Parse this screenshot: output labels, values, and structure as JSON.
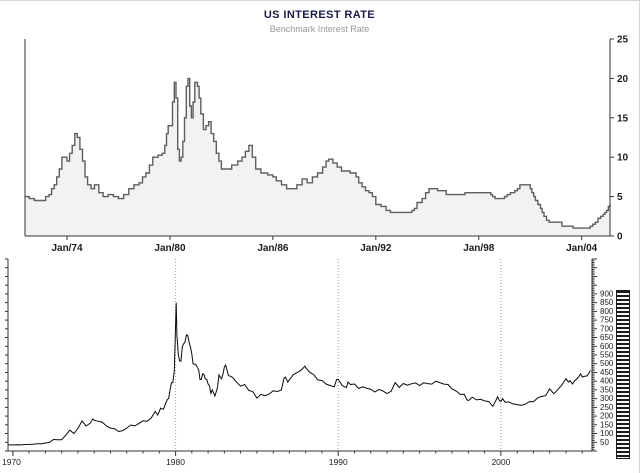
{
  "chart_data": [
    {
      "type": "area",
      "title": "US INTEREST RATE",
      "subtitle": "Benchmark Interest Rate",
      "step": true,
      "xlim": [
        1971.55,
        2005.65
      ],
      "ylim": [
        0,
        25
      ],
      "y_ticks": [
        0,
        5,
        10,
        15,
        20,
        25
      ],
      "x_tick_years": [
        1974,
        1980,
        1986,
        1992,
        1998,
        2004
      ],
      "x_tick_labels": [
        "Jan/74",
        "Jan/80",
        "Jan/86",
        "Jan/92",
        "Jan/98",
        "Jan/04"
      ],
      "legend_position": "none",
      "grid": false,
      "colors": {
        "title": "#1a1a4e",
        "subtitle": "#979797",
        "axis": "#333333",
        "label": "#1c1c1c",
        "line": "#5e5e5e",
        "fill": "#f2f2f2"
      },
      "points": [
        [
          1971.55,
          5.0
        ],
        [
          1971.8,
          4.75
        ],
        [
          1972.1,
          4.5
        ],
        [
          1972.5,
          4.5
        ],
        [
          1972.75,
          5.0
        ],
        [
          1972.95,
          5.25
        ],
        [
          1973.1,
          6.0
        ],
        [
          1973.25,
          6.5
        ],
        [
          1973.4,
          7.5
        ],
        [
          1973.55,
          8.5
        ],
        [
          1973.7,
          10.0
        ],
        [
          1974.0,
          9.5
        ],
        [
          1974.15,
          10.5
        ],
        [
          1974.3,
          11.5
        ],
        [
          1974.45,
          13.0
        ],
        [
          1974.6,
          12.5
        ],
        [
          1974.75,
          11.0
        ],
        [
          1974.9,
          9.5
        ],
        [
          1975.05,
          7.5
        ],
        [
          1975.2,
          6.5
        ],
        [
          1975.4,
          6.0
        ],
        [
          1975.6,
          6.5
        ],
        [
          1975.85,
          5.5
        ],
        [
          1976.1,
          5.0
        ],
        [
          1976.4,
          5.25
        ],
        [
          1976.7,
          5.0
        ],
        [
          1977.0,
          4.75
        ],
        [
          1977.3,
          5.25
        ],
        [
          1977.6,
          6.0
        ],
        [
          1977.9,
          6.5
        ],
        [
          1978.2,
          6.75
        ],
        [
          1978.4,
          7.5
        ],
        [
          1978.6,
          8.0
        ],
        [
          1978.8,
          9.0
        ],
        [
          1979.0,
          10.0
        ],
        [
          1979.3,
          10.25
        ],
        [
          1979.55,
          10.5
        ],
        [
          1979.7,
          11.5
        ],
        [
          1979.8,
          13.0
        ],
        [
          1979.9,
          14.0
        ],
        [
          1980.15,
          17.0
        ],
        [
          1980.25,
          19.5
        ],
        [
          1980.35,
          17.5
        ],
        [
          1980.45,
          11.0
        ],
        [
          1980.55,
          9.5
        ],
        [
          1980.65,
          10.0
        ],
        [
          1980.75,
          12.0
        ],
        [
          1980.85,
          15.0
        ],
        [
          1980.95,
          19.0
        ],
        [
          1981.05,
          20.0
        ],
        [
          1981.15,
          16.5
        ],
        [
          1981.25,
          15.0
        ],
        [
          1981.35,
          17.0
        ],
        [
          1981.45,
          19.5
        ],
        [
          1981.6,
          19.0
        ],
        [
          1981.7,
          17.5
        ],
        [
          1981.8,
          15.5
        ],
        [
          1981.95,
          13.5
        ],
        [
          1982.1,
          14.0
        ],
        [
          1982.25,
          14.5
        ],
        [
          1982.4,
          13.0
        ],
        [
          1982.55,
          12.0
        ],
        [
          1982.7,
          10.5
        ],
        [
          1982.85,
          9.5
        ],
        [
          1983.0,
          8.5
        ],
        [
          1983.6,
          9.0
        ],
        [
          1983.95,
          9.5
        ],
        [
          1984.2,
          10.0
        ],
        [
          1984.4,
          10.75
        ],
        [
          1984.6,
          11.5
        ],
        [
          1984.8,
          10.0
        ],
        [
          1985.0,
          8.5
        ],
        [
          1985.3,
          8.0
        ],
        [
          1985.7,
          7.75
        ],
        [
          1986.0,
          7.5
        ],
        [
          1986.2,
          7.0
        ],
        [
          1986.5,
          6.5
        ],
        [
          1986.8,
          6.0
        ],
        [
          1987.4,
          6.5
        ],
        [
          1987.7,
          7.25
        ],
        [
          1988.0,
          6.75
        ],
        [
          1988.3,
          7.5
        ],
        [
          1988.6,
          8.0
        ],
        [
          1988.9,
          8.75
        ],
        [
          1989.1,
          9.5
        ],
        [
          1989.25,
          9.75
        ],
        [
          1989.5,
          9.25
        ],
        [
          1989.75,
          8.75
        ],
        [
          1990.0,
          8.25
        ],
        [
          1990.5,
          8.0
        ],
        [
          1990.85,
          7.5
        ],
        [
          1991.0,
          6.75
        ],
        [
          1991.2,
          6.25
        ],
        [
          1991.4,
          5.75
        ],
        [
          1991.6,
          5.5
        ],
        [
          1991.8,
          5.0
        ],
        [
          1992.0,
          4.0
        ],
        [
          1992.3,
          3.75
        ],
        [
          1992.6,
          3.25
        ],
        [
          1992.85,
          3.0
        ],
        [
          1994.1,
          3.25
        ],
        [
          1994.25,
          3.5
        ],
        [
          1994.4,
          4.25
        ],
        [
          1994.7,
          4.75
        ],
        [
          1994.9,
          5.5
        ],
        [
          1995.1,
          6.0
        ],
        [
          1995.6,
          5.75
        ],
        [
          1996.1,
          5.25
        ],
        [
          1997.2,
          5.5
        ],
        [
          1998.7,
          5.25
        ],
        [
          1998.8,
          5.0
        ],
        [
          1998.95,
          4.75
        ],
        [
          1999.5,
          5.0
        ],
        [
          1999.65,
          5.25
        ],
        [
          1999.85,
          5.5
        ],
        [
          2000.1,
          5.75
        ],
        [
          2000.25,
          6.0
        ],
        [
          2000.4,
          6.5
        ],
        [
          2001.0,
          6.0
        ],
        [
          2001.1,
          5.5
        ],
        [
          2001.2,
          5.0
        ],
        [
          2001.3,
          4.5
        ],
        [
          2001.45,
          4.0
        ],
        [
          2001.6,
          3.5
        ],
        [
          2001.7,
          3.0
        ],
        [
          2001.8,
          2.5
        ],
        [
          2001.95,
          2.0
        ],
        [
          2002.1,
          1.75
        ],
        [
          2002.85,
          1.25
        ],
        [
          2003.5,
          1.0
        ],
        [
          2004.5,
          1.25
        ],
        [
          2004.65,
          1.5
        ],
        [
          2004.8,
          1.75
        ],
        [
          2004.95,
          2.25
        ],
        [
          2005.1,
          2.5
        ],
        [
          2005.25,
          2.75
        ],
        [
          2005.35,
          3.0
        ],
        [
          2005.45,
          3.25
        ],
        [
          2005.55,
          3.75
        ],
        [
          2005.65,
          4.0
        ]
      ]
    },
    {
      "type": "line",
      "title": "",
      "xlim": [
        1969.7,
        2005.6
      ],
      "ylim": [
        0,
        1100
      ],
      "y_ticks": [
        50,
        100,
        150,
        200,
        250,
        300,
        350,
        400,
        450,
        500,
        550,
        600,
        650,
        700,
        750,
        800,
        850,
        900
      ],
      "x_tick_years": [
        1970,
        1980,
        1990,
        2000
      ],
      "x_tick_labels": [
        "1970",
        "1980",
        "1990",
        "2000"
      ],
      "grid_years": [
        1980,
        1990,
        2000
      ],
      "grid": true,
      "legend_position": "none",
      "colors": {
        "axis": "#333333",
        "label": "#1c1c1c",
        "line": "#0a0a0a",
        "grid": "#9a9a9a"
      },
      "points": [
        [
          1969.7,
          35
        ],
        [
          1970.0,
          35
        ],
        [
          1970.25,
          36
        ],
        [
          1970.5,
          35
        ],
        [
          1970.75,
          37
        ],
        [
          1971.0,
          38
        ],
        [
          1971.25,
          39
        ],
        [
          1971.5,
          41
        ],
        [
          1971.75,
          42
        ],
        [
          1972.0,
          46
        ],
        [
          1972.25,
          49
        ],
        [
          1972.5,
          66
        ],
        [
          1972.75,
          65
        ],
        [
          1973.0,
          65
        ],
        [
          1973.25,
          90
        ],
        [
          1973.5,
          120
        ],
        [
          1973.75,
          100
        ],
        [
          1974.0,
          129
        ],
        [
          1974.25,
          172
        ],
        [
          1974.5,
          143
        ],
        [
          1974.75,
          159
        ],
        [
          1974.92,
          184
        ],
        [
          1975.0,
          176
        ],
        [
          1975.25,
          170
        ],
        [
          1975.5,
          165
        ],
        [
          1975.75,
          143
        ],
        [
          1976.0,
          131
        ],
        [
          1976.25,
          128
        ],
        [
          1976.5,
          112
        ],
        [
          1976.75,
          117
        ],
        [
          1977.0,
          132
        ],
        [
          1977.25,
          149
        ],
        [
          1977.5,
          144
        ],
        [
          1977.75,
          158
        ],
        [
          1978.0,
          173
        ],
        [
          1978.25,
          171
        ],
        [
          1978.5,
          189
        ],
        [
          1978.75,
          227
        ],
        [
          1978.9,
          206
        ],
        [
          1979.0,
          227
        ],
        [
          1979.08,
          245
        ],
        [
          1979.17,
          242
        ],
        [
          1979.25,
          239
        ],
        [
          1979.33,
          258
        ],
        [
          1979.42,
          279
        ],
        [
          1979.5,
          295
        ],
        [
          1979.58,
          301
        ],
        [
          1979.67,
          355
        ],
        [
          1979.75,
          392
        ],
        [
          1979.83,
          392
        ],
        [
          1979.92,
          455
        ],
        [
          1980.04,
          850
        ],
        [
          1980.08,
          665
        ],
        [
          1980.17,
          554
        ],
        [
          1980.25,
          517
        ],
        [
          1980.33,
          514
        ],
        [
          1980.42,
          600
        ],
        [
          1980.5,
          614
        ],
        [
          1980.58,
          625
        ],
        [
          1980.67,
          666
        ],
        [
          1980.75,
          661
        ],
        [
          1980.83,
          623
        ],
        [
          1980.92,
          594
        ],
        [
          1981.0,
          557
        ],
        [
          1981.08,
          499
        ],
        [
          1981.17,
          498
        ],
        [
          1981.25,
          495
        ],
        [
          1981.33,
          480
        ],
        [
          1981.42,
          465
        ],
        [
          1981.5,
          409
        ],
        [
          1981.58,
          410
        ],
        [
          1981.67,
          443
        ],
        [
          1981.75,
          437
        ],
        [
          1981.83,
          413
        ],
        [
          1981.92,
          410
        ],
        [
          1982.0,
          384
        ],
        [
          1982.08,
          374
        ],
        [
          1982.17,
          330
        ],
        [
          1982.25,
          350
        ],
        [
          1982.33,
          334
        ],
        [
          1982.42,
          315
        ],
        [
          1982.5,
          339
        ],
        [
          1982.58,
          364
        ],
        [
          1982.67,
          436
        ],
        [
          1982.75,
          422
        ],
        [
          1982.83,
          414
        ],
        [
          1982.92,
          444
        ],
        [
          1983.0,
          481
        ],
        [
          1983.08,
          492
        ],
        [
          1983.25,
          433
        ],
        [
          1983.5,
          422
        ],
        [
          1983.75,
          394
        ],
        [
          1984.0,
          371
        ],
        [
          1984.25,
          381
        ],
        [
          1984.5,
          347
        ],
        [
          1984.75,
          340
        ],
        [
          1985.0,
          303
        ],
        [
          1985.25,
          325
        ],
        [
          1985.5,
          317
        ],
        [
          1985.75,
          326
        ],
        [
          1986.0,
          345
        ],
        [
          1986.25,
          341
        ],
        [
          1986.5,
          349
        ],
        [
          1986.67,
          418
        ],
        [
          1986.75,
          424
        ],
        [
          1986.9,
          395
        ],
        [
          1987.0,
          408
        ],
        [
          1987.25,
          438
        ],
        [
          1987.5,
          451
        ],
        [
          1987.75,
          466
        ],
        [
          1987.95,
          486
        ],
        [
          1988.0,
          477
        ],
        [
          1988.25,
          451
        ],
        [
          1988.5,
          437
        ],
        [
          1988.75,
          407
        ],
        [
          1989.0,
          404
        ],
        [
          1989.25,
          384
        ],
        [
          1989.5,
          375
        ],
        [
          1989.75,
          367
        ],
        [
          1989.9,
          409
        ],
        [
          1990.0,
          410
        ],
        [
          1990.25,
          374
        ],
        [
          1990.5,
          363
        ],
        [
          1990.6,
          395
        ],
        [
          1990.75,
          381
        ],
        [
          1991.0,
          384
        ],
        [
          1991.25,
          358
        ],
        [
          1991.5,
          368
        ],
        [
          1991.75,
          359
        ],
        [
          1992.0,
          354
        ],
        [
          1992.25,
          338
        ],
        [
          1992.5,
          353
        ],
        [
          1992.75,
          344
        ],
        [
          1993.0,
          329
        ],
        [
          1993.25,
          342
        ],
        [
          1993.5,
          392
        ],
        [
          1993.75,
          364
        ],
        [
          1994.0,
          387
        ],
        [
          1994.25,
          377
        ],
        [
          1994.5,
          385
        ],
        [
          1994.75,
          390
        ],
        [
          1995.0,
          375
        ],
        [
          1995.25,
          391
        ],
        [
          1995.5,
          386
        ],
        [
          1995.75,
          383
        ],
        [
          1996.0,
          400
        ],
        [
          1996.25,
          392
        ],
        [
          1996.5,
          383
        ],
        [
          1996.75,
          381
        ],
        [
          1997.0,
          355
        ],
        [
          1997.25,
          344
        ],
        [
          1997.5,
          324
        ],
        [
          1997.75,
          325
        ],
        [
          1997.9,
          295
        ],
        [
          1998.0,
          289
        ],
        [
          1998.25,
          308
        ],
        [
          1998.5,
          293
        ],
        [
          1998.75,
          296
        ],
        [
          1999.0,
          287
        ],
        [
          1999.25,
          283
        ],
        [
          1999.5,
          256
        ],
        [
          1999.75,
          300
        ],
        [
          1999.8,
          311
        ],
        [
          1999.9,
          290
        ],
        [
          2000.0,
          284
        ],
        [
          2000.1,
          300
        ],
        [
          2000.25,
          280
        ],
        [
          2000.5,
          281
        ],
        [
          2000.75,
          270
        ],
        [
          2001.0,
          266
        ],
        [
          2001.25,
          261
        ],
        [
          2001.5,
          268
        ],
        [
          2001.75,
          283
        ],
        [
          2002.0,
          282
        ],
        [
          2002.25,
          303
        ],
        [
          2002.5,
          313
        ],
        [
          2002.75,
          317
        ],
        [
          2003.0,
          357
        ],
        [
          2003.15,
          340
        ],
        [
          2003.25,
          328
        ],
        [
          2003.5,
          351
        ],
        [
          2003.75,
          379
        ],
        [
          2004.0,
          414
        ],
        [
          2004.15,
          395
        ],
        [
          2004.25,
          403
        ],
        [
          2004.4,
          384
        ],
        [
          2004.5,
          398
        ],
        [
          2004.75,
          421
        ],
        [
          2004.9,
          442
        ],
        [
          2005.0,
          424
        ],
        [
          2005.15,
          428
        ],
        [
          2005.3,
          430
        ],
        [
          2005.45,
          452
        ],
        [
          2005.5,
          462
        ]
      ]
    }
  ]
}
